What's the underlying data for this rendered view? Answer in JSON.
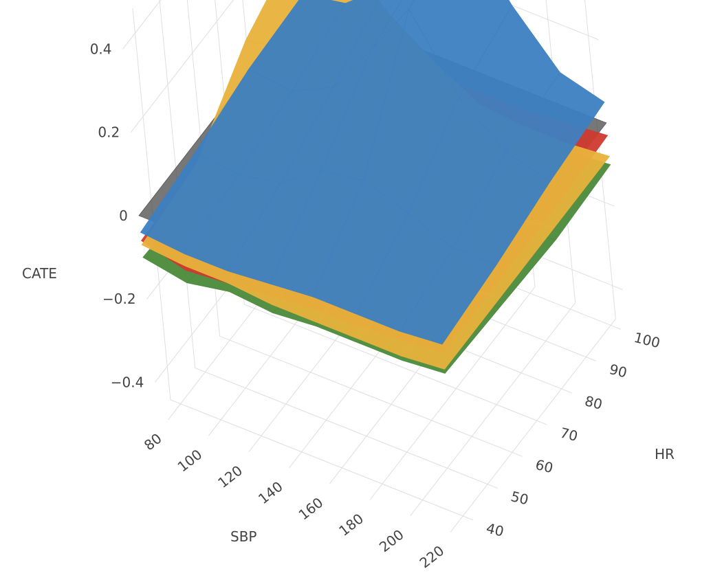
{
  "chart_data": {
    "type": "surface3d",
    "axes": {
      "x": {
        "title": "SBP",
        "ticks": [
          80,
          100,
          120,
          140,
          160,
          180,
          200,
          220
        ],
        "range": [
          75,
          225
        ]
      },
      "y": {
        "title": "HR",
        "ticks": [
          40,
          50,
          60,
          70,
          80,
          90,
          100
        ],
        "range": [
          35,
          102
        ]
      },
      "z": {
        "title": "CATE",
        "ticks": [
          -0.4,
          -0.2,
          0,
          0.2,
          0.4
        ],
        "tick_labels": [
          "−0.4",
          "−0.2",
          "0",
          "0.2",
          "0.4"
        ],
        "range": [
          -0.48,
          0.46
        ]
      }
    },
    "grid": true,
    "legend": "none",
    "surfaces": [
      {
        "color": "#4a4a4a",
        "opacity": 0.75,
        "z": [
          [
            0,
            0,
            0,
            0
          ],
          [
            0,
            0,
            0,
            0
          ],
          [
            0,
            0,
            0,
            0
          ]
        ]
      },
      {
        "color": "#4a8a3a",
        "z": [
          [
            -0.1,
            -0.12,
            -0.1,
            -0.11,
            -0.1,
            -0.1,
            -0.1,
            -0.09
          ],
          [
            -0.11,
            -0.16,
            -0.13,
            -0.15,
            -0.14,
            -0.14,
            -0.12,
            -0.1
          ],
          [
            -0.1,
            -0.17,
            -0.12,
            -0.14,
            -0.16,
            -0.15,
            -0.13,
            -0.11
          ],
          [
            -0.1,
            -0.14,
            -0.14,
            -0.13,
            -0.16,
            -0.14,
            -0.11,
            -0.1
          ]
        ]
      },
      {
        "color": "#cf3a2f",
        "z": [
          [
            -0.06,
            -0.09,
            -0.08,
            -0.07,
            -0.06,
            -0.06,
            -0.05,
            -0.04
          ],
          [
            -0.05,
            -0.12,
            -0.1,
            -0.08,
            -0.07,
            -0.06,
            -0.05,
            -0.04
          ],
          [
            -0.04,
            -0.1,
            -0.06,
            -0.07,
            -0.06,
            -0.06,
            -0.05,
            -0.04
          ],
          [
            -0.04,
            -0.06,
            -0.05,
            -0.05,
            -0.05,
            -0.05,
            -0.04,
            -0.03
          ]
        ]
      },
      {
        "color": "#e8b23c",
        "z": [
          [
            -0.07,
            -0.08,
            -0.08,
            -0.09,
            -0.09,
            -0.09,
            -0.09,
            -0.08
          ],
          [
            -0.05,
            -0.04,
            -0.06,
            -0.1,
            -0.11,
            -0.1,
            -0.09,
            -0.08
          ],
          [
            0.08,
            0.1,
            0.02,
            -0.05,
            -0.1,
            -0.11,
            -0.1,
            -0.08
          ],
          [
            0.15,
            0.17,
            0.06,
            -0.02,
            -0.08,
            -0.09,
            -0.09,
            -0.08
          ]
        ]
      },
      {
        "color": "#3d7fc1",
        "z": [
          [
            -0.04,
            -0.05,
            -0.05,
            -0.04,
            -0.03,
            -0.03,
            -0.03,
            -0.02
          ],
          [
            -0.02,
            -0.03,
            -0.01,
            0.06,
            0.08,
            0.04,
            0.0,
            0.0
          ],
          [
            0.01,
            0.0,
            0.05,
            0.18,
            0.32,
            0.15,
            0.06,
            0.03
          ],
          [
            0.02,
            0.04,
            0.12,
            0.22,
            0.36,
            0.2,
            0.08,
            0.05
          ]
        ]
      }
    ]
  }
}
